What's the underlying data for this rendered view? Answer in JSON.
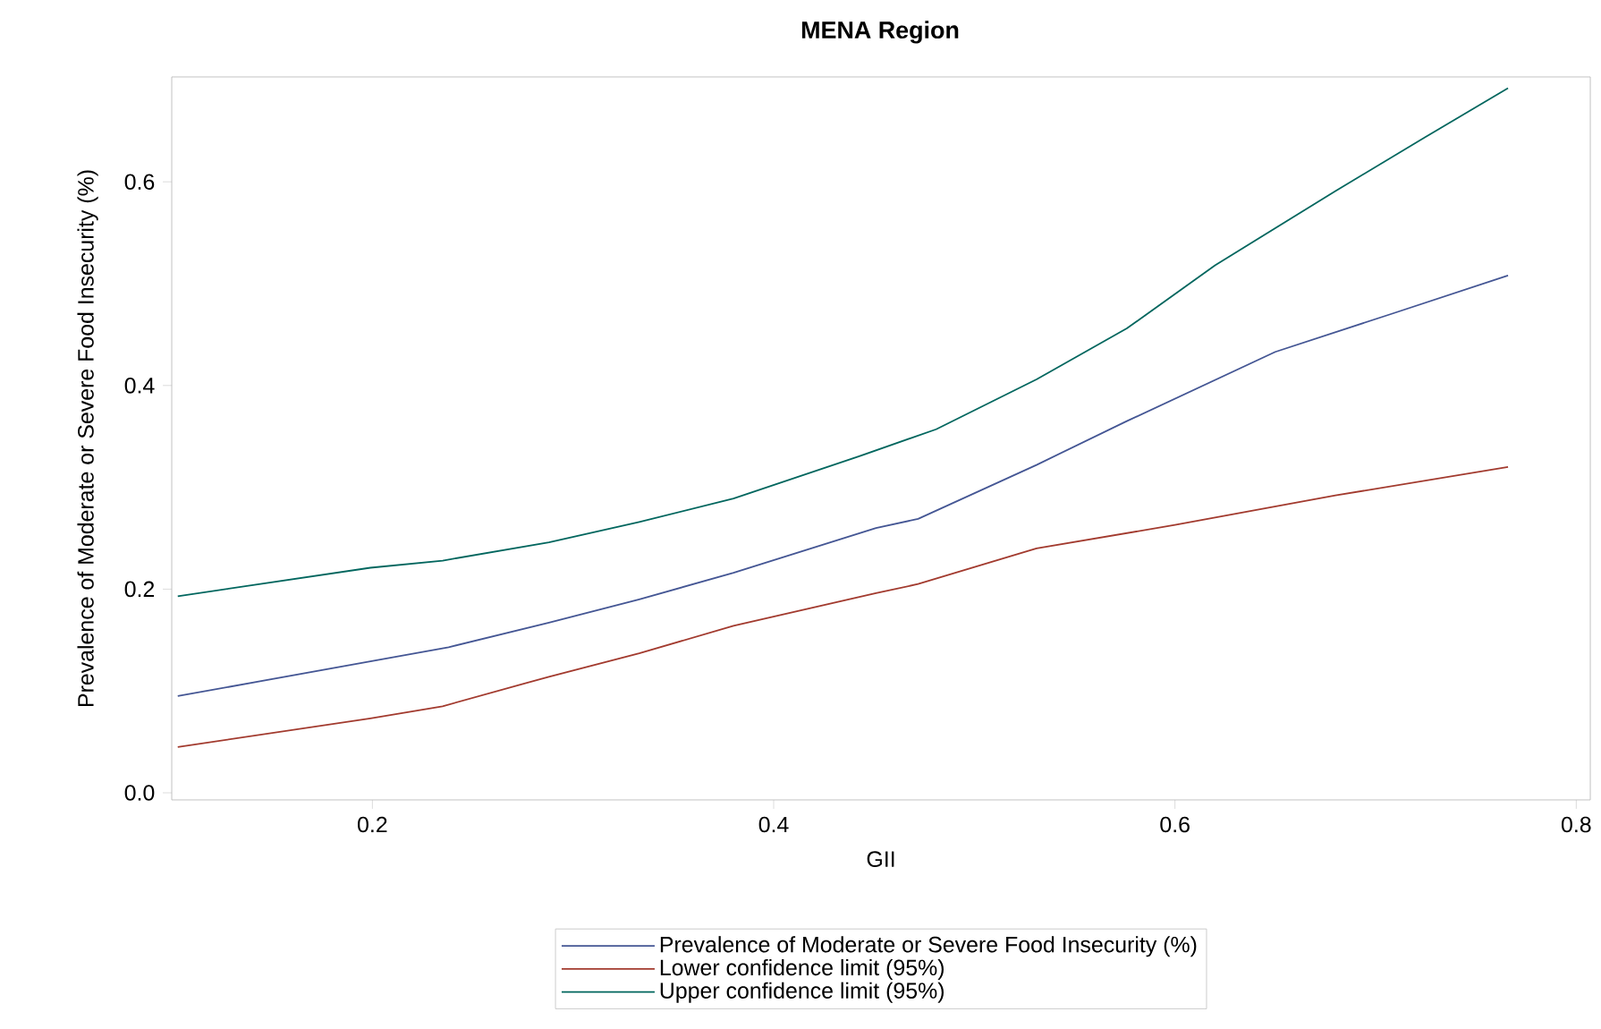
{
  "chart_data": {
    "type": "line",
    "title": "MENA Region",
    "xlabel": "GII",
    "ylabel": "Prevalence of Moderate or Severe Food Insecurity (%)",
    "xlim": [
      0.1,
      0.807
    ],
    "ylim": [
      -0.007,
      0.703
    ],
    "xticks": [
      0.2,
      0.4,
      0.6,
      0.8
    ],
    "yticks": [
      {
        "value": 0,
        "label": "0.0"
      },
      0.2,
      0.4,
      0.6
    ],
    "grid": false,
    "legend": "bottom",
    "marker": "none",
    "line_style": "solid",
    "series": [
      {
        "name": "Prevalence of Moderate or Severe Food Insecurity (%)",
        "color": "#445694",
        "x": [
          0.103,
          0.199,
          0.238,
          0.288,
          0.333,
          0.38,
          0.451,
          0.472,
          0.531,
          0.576,
          0.65,
          0.709,
          0.766
        ],
        "values": [
          0.095,
          0.129,
          0.143,
          0.167,
          0.19,
          0.216,
          0.26,
          0.269,
          0.322,
          0.365,
          0.433,
          0.471,
          0.508
        ]
      },
      {
        "name": "Lower confidence limit (95%)",
        "color": "#a23a2e",
        "x": [
          0.103,
          0.199,
          0.235,
          0.288,
          0.333,
          0.38,
          0.451,
          0.472,
          0.531,
          0.6,
          0.68,
          0.766
        ],
        "values": [
          0.045,
          0.073,
          0.085,
          0.114,
          0.137,
          0.164,
          0.196,
          0.205,
          0.24,
          0.263,
          0.292,
          0.32
        ]
      },
      {
        "name": "Upper confidence limit (95%)",
        "color": "#01665e",
        "x": [
          0.103,
          0.199,
          0.235,
          0.288,
          0.333,
          0.38,
          0.442,
          0.481,
          0.531,
          0.576,
          0.62,
          0.68,
          0.724,
          0.766
        ],
        "values": [
          0.193,
          0.221,
          0.228,
          0.246,
          0.266,
          0.289,
          0.33,
          0.357,
          0.406,
          0.456,
          0.518,
          0.591,
          0.643,
          0.692
        ]
      }
    ]
  }
}
